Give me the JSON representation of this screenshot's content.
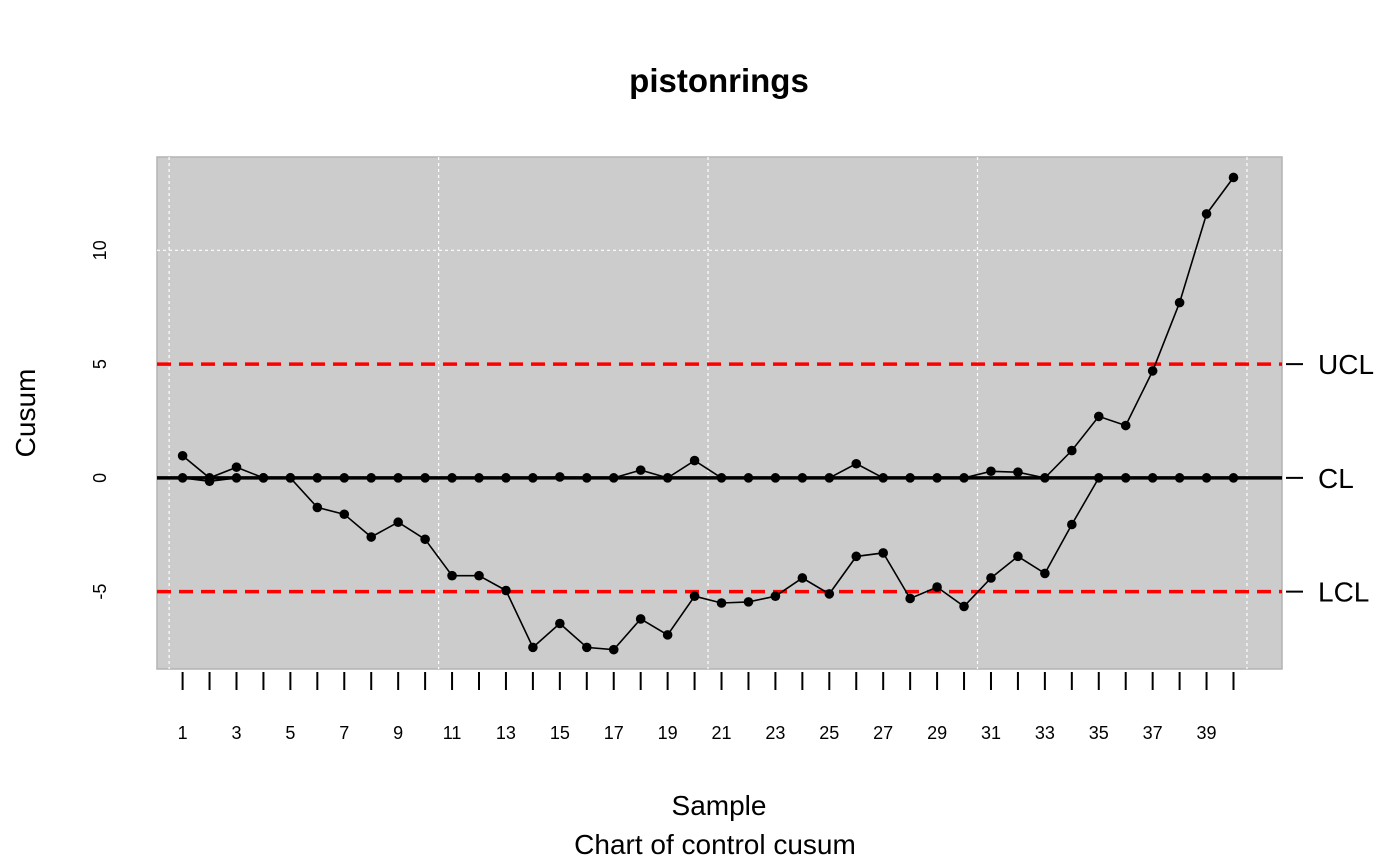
{
  "chart_data": {
    "type": "line",
    "title": "pistonrings",
    "xlabel": "Sample",
    "subtitle": "Chart of control cusum",
    "ylabel": "Cusum",
    "xlim": [
      0.05,
      41.8
    ],
    "ylim": [
      -8.4,
      14.1
    ],
    "x_ticks": [
      1,
      2,
      3,
      4,
      5,
      6,
      7,
      8,
      9,
      10,
      11,
      12,
      13,
      14,
      15,
      16,
      17,
      18,
      19,
      20,
      21,
      22,
      23,
      24,
      25,
      26,
      27,
      28,
      29,
      30,
      31,
      32,
      33,
      34,
      35,
      36,
      37,
      38,
      39,
      40
    ],
    "x_tick_labels": [
      "1",
      "3",
      "5",
      "7",
      "9",
      "11",
      "13",
      "15",
      "17",
      "19",
      "21",
      "23",
      "25",
      "27",
      "29",
      "31",
      "33",
      "35",
      "37",
      "39"
    ],
    "x_tick_label_values": [
      1,
      3,
      5,
      7,
      9,
      11,
      13,
      15,
      17,
      19,
      21,
      23,
      25,
      27,
      29,
      31,
      33,
      35,
      37,
      39
    ],
    "y_ticks": [
      -5,
      0,
      5,
      10
    ],
    "y_tick_labels": [
      "-5",
      "0",
      "5",
      "10"
    ],
    "grid": true,
    "x_grid": [
      0.5,
      10.5,
      20.5,
      30.5,
      40.5
    ],
    "y_grid": [
      10
    ],
    "background_color": "#cccccc",
    "limit_color": "#ff0000",
    "center_line": {
      "label": "CL",
      "value": 0
    },
    "upper_limit": {
      "label": "UCL",
      "value": 5
    },
    "lower_limit": {
      "label": "LCL",
      "value": -5
    },
    "series": [
      {
        "role": "upper-cusum",
        "x": [
          1,
          2,
          3,
          4,
          5,
          6,
          7,
          8,
          9,
          10,
          11,
          12,
          13,
          14,
          15,
          16,
          17,
          18,
          19,
          20,
          21,
          22,
          23,
          24,
          25,
          26,
          27,
          28,
          29,
          30,
          31,
          32,
          33,
          34,
          35,
          36,
          37,
          38,
          39,
          40
        ],
        "values": [
          0.97,
          0,
          0.47,
          0,
          0,
          0,
          0,
          0,
          0,
          0,
          0,
          0,
          0,
          0,
          0.04,
          0,
          0,
          0.34,
          0,
          0.76,
          0,
          0,
          0,
          0,
          0,
          0.62,
          0,
          0,
          0,
          0,
          0.29,
          0.25,
          0,
          1.2,
          2.7,
          2.3,
          4.7,
          7.7,
          11.6,
          13.2
        ]
      },
      {
        "role": "lower-cusum",
        "x": [
          1,
          2,
          3,
          4,
          5,
          6,
          7,
          8,
          9,
          10,
          11,
          12,
          13,
          14,
          15,
          16,
          17,
          18,
          19,
          20,
          21,
          22,
          23,
          24,
          25,
          26,
          27,
          28,
          29,
          30,
          31,
          32,
          33,
          34,
          35,
          36,
          37,
          38,
          39,
          40
        ],
        "values": [
          0,
          -0.15,
          0,
          0,
          0,
          -1.3,
          -1.6,
          -2.6,
          -1.95,
          -2.7,
          -4.3,
          -4.3,
          -4.95,
          -7.45,
          -6.4,
          -7.45,
          -7.55,
          -6.2,
          -6.9,
          -5.2,
          -5.5,
          -5.45,
          -5.2,
          -4.4,
          -5.1,
          -3.45,
          -3.3,
          -5.3,
          -4.8,
          -5.65,
          -4.4,
          -3.45,
          -4.2,
          -2.05,
          0,
          0,
          0,
          0,
          0,
          0
        ]
      }
    ]
  }
}
